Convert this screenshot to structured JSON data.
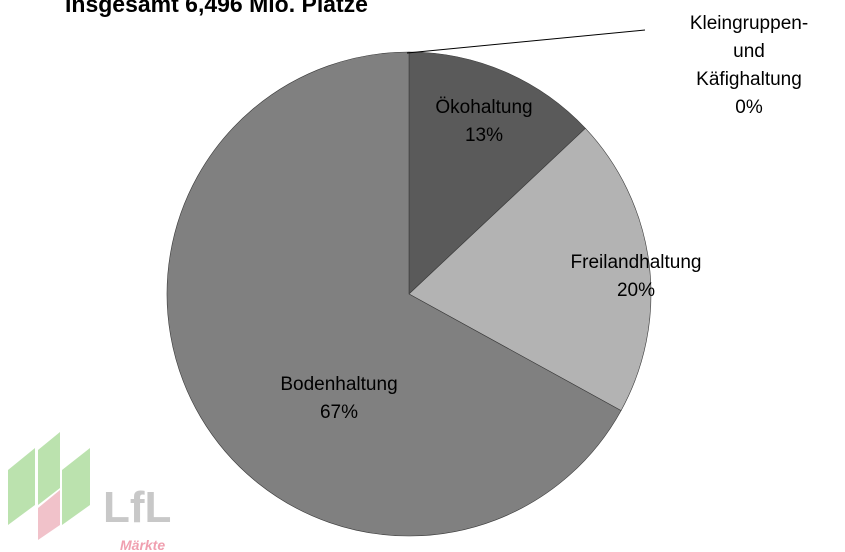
{
  "chart_data": {
    "type": "pie",
    "title": "Insgesamt 6,496 Mio. Plätze",
    "categories": [
      "Kleingruppen- und\nKäfighaltung",
      "Ökohaltung",
      "Freilandhaltung",
      "Bodenhaltung"
    ],
    "values": [
      0,
      13,
      20,
      67
    ],
    "value_labels": [
      "0%",
      "13%",
      "20%",
      "67%"
    ],
    "colors": [
      "#404040",
      "#5a5a5a",
      "#b3b3b3",
      "#808080"
    ]
  },
  "logo": {
    "name": "LfL",
    "subtitle": "Märkte"
  }
}
